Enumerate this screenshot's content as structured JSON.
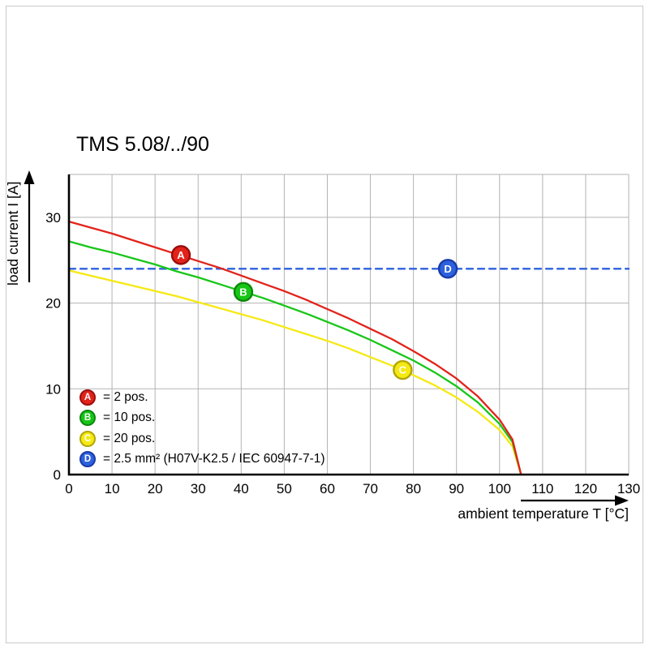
{
  "title": "TMS 5.08/../90",
  "chart_data": {
    "type": "line",
    "title": "TMS 5.08/../90",
    "xlabel": "ambient temperature T [°C]",
    "ylabel": "load current I [A]",
    "xlim": [
      0,
      130
    ],
    "ylim": [
      0,
      35
    ],
    "xticks": [
      0,
      10,
      20,
      30,
      40,
      50,
      60,
      70,
      80,
      90,
      100,
      110,
      120,
      130
    ],
    "yticks": [
      0,
      10,
      20,
      30
    ],
    "grid": true,
    "legend_position": "lower-left-inside",
    "series": [
      {
        "name": "A",
        "label": "2 pos.",
        "type": "curve",
        "color": "#e2231a",
        "ring": "#9b0e0e",
        "points": [
          [
            0,
            29.5
          ],
          [
            5,
            28.8
          ],
          [
            10,
            28.1
          ],
          [
            15,
            27.3
          ],
          [
            20,
            26.5
          ],
          [
            25,
            25.7
          ],
          [
            30,
            24.9
          ],
          [
            35,
            24.1
          ],
          [
            40,
            23.2
          ],
          [
            45,
            22.3
          ],
          [
            50,
            21.4
          ],
          [
            55,
            20.4
          ],
          [
            60,
            19.3
          ],
          [
            65,
            18.2
          ],
          [
            70,
            17.0
          ],
          [
            75,
            15.8
          ],
          [
            80,
            14.4
          ],
          [
            85,
            12.9
          ],
          [
            90,
            11.2
          ],
          [
            95,
            9.1
          ],
          [
            100,
            6.4
          ],
          [
            103,
            4.1
          ],
          [
            105,
            0
          ]
        ],
        "marker": {
          "letter": "A",
          "x": 26,
          "y": 25.6
        }
      },
      {
        "name": "B",
        "label": "10 pos.",
        "type": "curve",
        "color": "#17c617",
        "ring": "#0e860e",
        "points": [
          [
            0,
            27.2
          ],
          [
            5,
            26.5
          ],
          [
            10,
            25.9
          ],
          [
            15,
            25.2
          ],
          [
            20,
            24.5
          ],
          [
            25,
            23.7
          ],
          [
            30,
            23.0
          ],
          [
            35,
            22.2
          ],
          [
            40,
            21.4
          ],
          [
            45,
            20.6
          ],
          [
            50,
            19.7
          ],
          [
            55,
            18.8
          ],
          [
            60,
            17.8
          ],
          [
            65,
            16.8
          ],
          [
            70,
            15.7
          ],
          [
            75,
            14.5
          ],
          [
            80,
            13.3
          ],
          [
            85,
            11.9
          ],
          [
            90,
            10.3
          ],
          [
            95,
            8.4
          ],
          [
            100,
            5.9
          ],
          [
            103,
            3.8
          ],
          [
            105,
            0
          ]
        ],
        "marker": {
          "letter": "B",
          "x": 40.5,
          "y": 21.3
        }
      },
      {
        "name": "C",
        "label": "20 pos.",
        "type": "curve",
        "color": "#f5e913",
        "ring": "#b1a607",
        "points": [
          [
            0,
            23.8
          ],
          [
            5,
            23.2
          ],
          [
            10,
            22.6
          ],
          [
            15,
            22.0
          ],
          [
            20,
            21.4
          ],
          [
            25,
            20.8
          ],
          [
            30,
            20.1
          ],
          [
            35,
            19.4
          ],
          [
            40,
            18.7
          ],
          [
            45,
            18.0
          ],
          [
            50,
            17.2
          ],
          [
            55,
            16.4
          ],
          [
            60,
            15.6
          ],
          [
            65,
            14.7
          ],
          [
            70,
            13.7
          ],
          [
            75,
            12.7
          ],
          [
            80,
            11.6
          ],
          [
            85,
            10.4
          ],
          [
            90,
            9.0
          ],
          [
            95,
            7.3
          ],
          [
            100,
            5.2
          ],
          [
            103,
            3.3
          ],
          [
            105,
            0
          ]
        ],
        "marker": {
          "letter": "C",
          "x": 77.5,
          "y": 12.2
        }
      },
      {
        "name": "D",
        "label": "2.5 mm² (H07V-K2.5 / IEC 60947-7-1)",
        "type": "dashed-horizontal",
        "color": "#2d61dd",
        "ring": "#1a3aa8",
        "points": [
          [
            0,
            24
          ],
          [
            130,
            24
          ]
        ],
        "marker": {
          "letter": "D",
          "x": 88,
          "y": 24
        }
      }
    ]
  },
  "legend": {
    "items": [
      {
        "letter": "A",
        "text": "= 2 pos.",
        "color": "#e2231a",
        "ring": "#9b0e0e"
      },
      {
        "letter": "B",
        "text": "= 10 pos.",
        "color": "#17c617",
        "ring": "#0e860e"
      },
      {
        "letter": "C",
        "text": "= 20 pos.",
        "color": "#f5e913",
        "ring": "#b1a607"
      },
      {
        "letter": "D",
        "text": "= 2.5 mm² (H07V-K2.5 / IEC 60947-7-1)",
        "color": "#2d61dd",
        "ring": "#1a3aa8"
      }
    ]
  }
}
